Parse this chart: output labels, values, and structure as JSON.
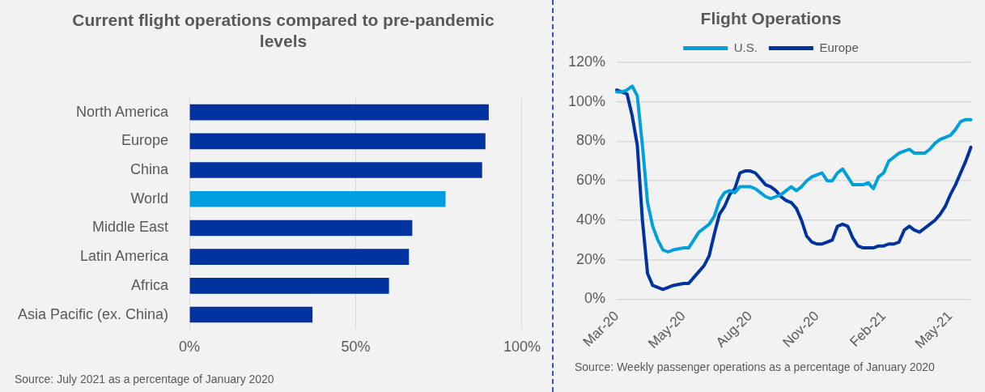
{
  "chart_data": [
    {
      "type": "bar",
      "orientation": "horizontal",
      "title": "Current flight operations compared to pre-pandemic levels",
      "categories": [
        "North America",
        "Europe",
        "China",
        "World",
        "Middle East",
        "Latin America",
        "Africa",
        "Asia Pacific (ex. China)"
      ],
      "values": [
        90,
        89,
        88,
        77,
        67,
        66,
        60,
        37
      ],
      "colors": [
        "#0033a0",
        "#0033a0",
        "#0033a0",
        "#009de0",
        "#0033a0",
        "#0033a0",
        "#0033a0",
        "#0033a0"
      ],
      "xlim": [
        0,
        100
      ],
      "xticks": [
        {
          "value": 0,
          "label": "0%"
        },
        {
          "value": 50,
          "label": "50%"
        },
        {
          "value": 100,
          "label": "100%"
        }
      ],
      "grid": "x",
      "annotations": [
        "Source: July 2021 as a percentage of January 2020"
      ]
    },
    {
      "type": "line",
      "title": "Flight Operations",
      "categories": [
        "Mar-20",
        null,
        null,
        null,
        null,
        null,
        null,
        null,
        null,
        null,
        null,
        null,
        null,
        "May-20",
        null,
        null,
        null,
        null,
        null,
        null,
        null,
        null,
        null,
        null,
        null,
        null,
        "Aug-20",
        null,
        null,
        null,
        null,
        null,
        null,
        null,
        null,
        null,
        null,
        null,
        null,
        "Nov-20",
        null,
        null,
        null,
        null,
        null,
        null,
        null,
        null,
        null,
        null,
        null,
        null,
        "Feb-21",
        null,
        null,
        null,
        null,
        null,
        null,
        null,
        null,
        null,
        null,
        null,
        null,
        "May-21",
        null,
        null,
        null,
        null
      ],
      "series": [
        {
          "name": "U.S.",
          "color": "#00a0dc",
          "values": [
            105,
            105,
            106,
            108,
            103,
            78,
            49,
            37,
            30,
            25,
            24,
            25,
            25.5,
            26,
            26,
            30,
            34,
            36,
            38,
            42,
            50,
            54,
            55,
            54,
            57,
            57,
            57,
            56,
            54,
            52,
            51,
            52,
            53,
            55,
            57,
            55,
            57,
            60,
            62,
            63,
            64,
            60,
            60,
            64,
            66,
            62,
            58,
            58,
            58,
            59,
            56,
            62,
            64,
            70,
            72,
            74,
            75,
            76,
            74,
            74,
            74,
            76,
            79,
            81,
            82,
            83,
            86,
            90,
            91,
            91
          ]
        },
        {
          "name": "Europe",
          "color": "#0033a0",
          "values": [
            106,
            105,
            104,
            93,
            78,
            40,
            13,
            7,
            6,
            5,
            6,
            7,
            7.5,
            8,
            8,
            11,
            14,
            17,
            22,
            33,
            43,
            47,
            53,
            56,
            64,
            65,
            65,
            64,
            61,
            58,
            57,
            55,
            52,
            50,
            49,
            46,
            40,
            32,
            29,
            28,
            28,
            29,
            30,
            37,
            38,
            37,
            31,
            27,
            26,
            26,
            26,
            27,
            27,
            28,
            28,
            29,
            35,
            37,
            35,
            34,
            36,
            38,
            40,
            43,
            47,
            53,
            58,
            64,
            70,
            77
          ]
        }
      ],
      "ylim": [
        0,
        120
      ],
      "yticks": [
        {
          "value": 0,
          "label": "0%"
        },
        {
          "value": 20,
          "label": "20%"
        },
        {
          "value": 40,
          "label": "40%"
        },
        {
          "value": 60,
          "label": "60%"
        },
        {
          "value": 80,
          "label": "80%"
        },
        {
          "value": 100,
          "label": "100%"
        },
        {
          "value": 120,
          "label": "120%"
        }
      ],
      "grid": "y",
      "legend": "top",
      "annotations": [
        "Source: Weekly passenger operations as a percentage of January 2020"
      ]
    }
  ]
}
